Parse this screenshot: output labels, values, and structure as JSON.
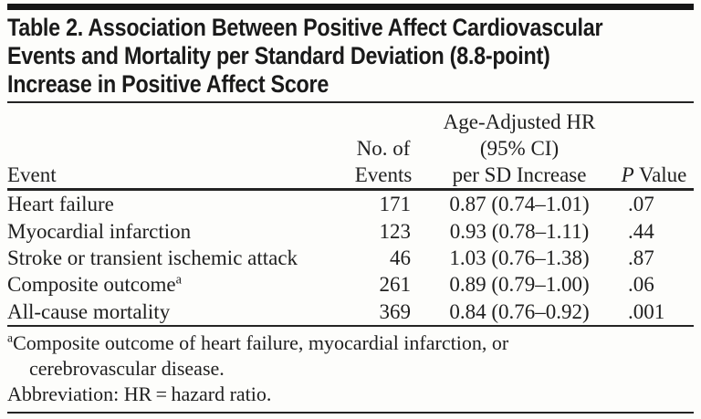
{
  "page": {
    "background": "#fdfdfb",
    "ink": "#1f1f1f",
    "rule_color": "#242424"
  },
  "table": {
    "title_lines": [
      "Table 2. Association Between Positive Affect Cardiovascular",
      "Events and Mortality per Standard Deviation (8.8-point)",
      "Increase in Positive Affect Score"
    ],
    "header": {
      "event": "Event",
      "no_of_events_lines": [
        "No. of",
        "Events"
      ],
      "hr_lines": [
        "Age-Adjusted HR",
        "(95% CI)",
        "per SD Increase"
      ],
      "p_italic": "P",
      "p_rest": " Value"
    },
    "rows": [
      {
        "event": "Heart failure",
        "n_events": "171",
        "hr": "0.87 (0.74–1.01)",
        "p": ".07"
      },
      {
        "event": "Myocardial infarction",
        "n_events": "123",
        "hr": "0.93 (0.78–1.11)",
        "p": ".44"
      },
      {
        "event": "Stroke or transient ischemic attack",
        "n_events": "46",
        "hr": "1.03 (0.76–1.38)",
        "p": ".87"
      },
      {
        "event": "Composite outcome",
        "event_sup": "a",
        "n_events": "261",
        "hr": "0.89 (0.79–1.00)",
        "p": ".06"
      },
      {
        "event": "All-cause mortality",
        "n_events": "369",
        "hr": "0.84 (0.76–0.92)",
        "p": ".001"
      }
    ],
    "footnotes": {
      "sup": "a",
      "line1": "Composite outcome of heart failure, myocardial infarction, or",
      "line2": "cerebrovascular disease.",
      "abbreviation": "Abbreviation: HR = hazard ratio."
    }
  }
}
